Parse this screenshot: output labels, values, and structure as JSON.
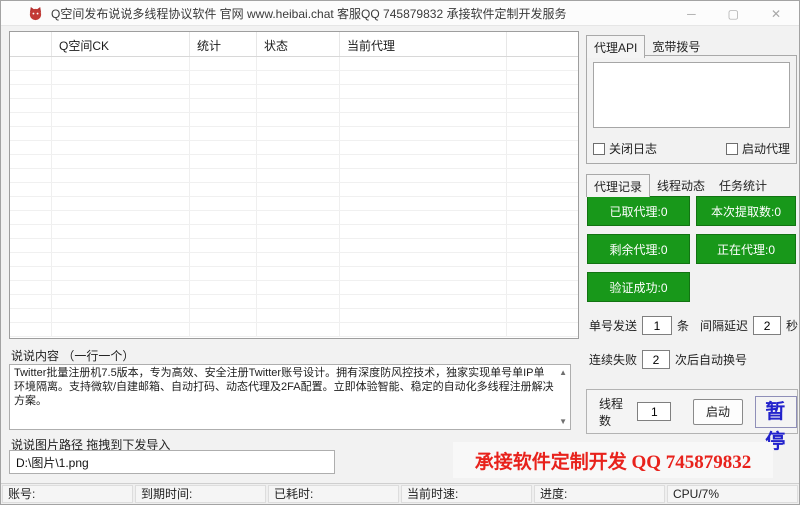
{
  "window": {
    "title": "Q空间发布说说多线程协议软件 官网 www.heibai.chat 客服QQ 745879832 承接软件定制开发服务",
    "controls": {
      "minimize": "─",
      "maximize": "▢",
      "close": "✕"
    }
  },
  "table": {
    "headers": [
      "",
      "Q空间CK",
      "统计",
      "状态",
      "当前代理",
      ""
    ],
    "row_count": 20,
    "rows": []
  },
  "proxy_panel": {
    "tabs": [
      {
        "label": "代理API",
        "active": true
      },
      {
        "label": "宽带拨号",
        "active": false
      }
    ],
    "api_textarea_value": "",
    "checkboxes": [
      {
        "label": "关闭日志",
        "checked": false
      },
      {
        "label": "启动代理",
        "checked": false
      }
    ]
  },
  "stats_panel": {
    "tabs": [
      {
        "label": "代理记录",
        "active": true
      },
      {
        "label": "线程动态",
        "active": false
      },
      {
        "label": "任务统计",
        "active": false
      }
    ],
    "buttons": [
      {
        "label": "已取代理:0"
      },
      {
        "label": "本次提取数:0"
      },
      {
        "label": "剩余代理:0"
      },
      {
        "label": "正在代理:0"
      },
      {
        "label": "验证成功:0"
      }
    ],
    "button_color": "#18981a"
  },
  "send_settings": {
    "per_account_label": "单号发送",
    "per_account_value": "1",
    "per_account_unit": "条",
    "interval_label": "间隔延迟",
    "interval_value": "2",
    "interval_unit": "秒",
    "fail_label": "连续失败",
    "fail_value": "2",
    "fail_suffix": "次后自动换号"
  },
  "run_controls": {
    "threads_label": "线程数",
    "threads_value": "1",
    "start_label": "启动",
    "pause_label": "暂停",
    "pause_color": "#2323cc"
  },
  "promo": {
    "text": "承接软件定制开发  QQ 745879832",
    "color": "#e8221c"
  },
  "content_section": {
    "label": "说说内容 （一行一个）",
    "textarea_value": "Twitter批量注册机7.5版本，专为高效、安全注册Twitter账号设计。拥有深度防风控技术，独家实现单号单IP单环境隔离。支持微软/自建邮箱、自动打码、动态代理及2FA配置。立即体验智能、稳定的自动化多线程注册解决方案。"
  },
  "image_path_section": {
    "label": "说说图片路径  拖拽到下发导入",
    "input_value": "D:\\图片\\1.png"
  },
  "status_bar": {
    "items": [
      "账号:",
      "到期时间:",
      "已耗时:",
      "当前时速:",
      "进度:",
      "CPU/7%"
    ]
  },
  "icons": {
    "scroll_up": "▲",
    "scroll_down": "▼"
  }
}
